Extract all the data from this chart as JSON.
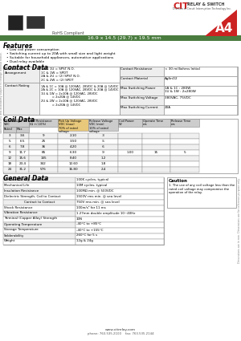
{
  "title": "A4",
  "subtitle": "16.9 x 14.5 (29.7) x 19.5 mm",
  "company": "CIT RELAY & SWITCH",
  "rohs": "RoHS Compliant",
  "features_title": "Features",
  "features": [
    "Low coil power consumption",
    "Switching current up to 20A with small size and light weight",
    "Suitable for household appliances, automotive applications",
    "Dual relay available"
  ],
  "contact_data_title": "Contact Data",
  "contact_right": [
    [
      "Contact Resistance",
      "< 30 milliohms Initial"
    ],
    [
      "Contact Material",
      "AgSnO2"
    ],
    [
      "Max Switching Power",
      "1A & 1C : 280W\n1U & 1W : 2x280W"
    ],
    [
      "Max Switching Voltage",
      "380VAC, 75VDC"
    ],
    [
      "Max Switching Current",
      "20A"
    ]
  ],
  "coil_data_title": "Coil Data",
  "general_data_title": "General Data",
  "general_data": [
    [
      "Electrical Life @ rated load",
      "100K cycles, typical"
    ],
    [
      "Mechanical Life",
      "10M cycles, typical"
    ],
    [
      "Insulation Resistance",
      "100MΩ min. @ 500VDC"
    ],
    [
      "Dielectric Strength, Coil to Contact",
      "1500V rms min. @ sea level"
    ],
    [
      "                    Contact to Contact",
      "750V rms min. @ sea level"
    ],
    [
      "Shock Resistance",
      "100m/s² for 11 ms"
    ],
    [
      "Vibration Resistance",
      "1.27mm double amplitude 10~40Hz"
    ],
    [
      "Terminal (Copper Alloy) Strength",
      "10N"
    ],
    [
      "Operating Temperature",
      "-40°C to +85°C"
    ],
    [
      "Storage Temperature",
      "-40°C to +155°C"
    ],
    [
      "Solderability",
      "260°C for 5 s"
    ],
    [
      "Weight",
      "12g & 24g"
    ]
  ],
  "caution_title": "Caution",
  "caution_text": "1. The use of any coil voltage less than the\nrated coil voltage may compromise the\noperation of the relay.",
  "header_color": "#4a7c3f",
  "bg_color": "#ffffff",
  "website": "www.citrelay.com",
  "phone": "phone: 763.535.2100    fax: 763.535.2144",
  "coil_rows": [
    [
      "3",
      "3.6",
      "9",
      "2.10",
      ".3",
      "",
      "",
      ""
    ],
    [
      "5",
      "6.5",
      "25",
      "3.50",
      ".5",
      "",
      "",
      ""
    ],
    [
      "6",
      "7.8",
      "36",
      "4.20",
      ".6",
      "",
      "",
      ""
    ],
    [
      "9",
      "11.7",
      "85",
      "6.30",
      ".9",
      "1.00",
      "15",
      "5"
    ],
    [
      "12",
      "15.6",
      "145",
      "8.40",
      "1.2",
      "",
      "",
      ""
    ],
    [
      "18",
      "23.4",
      "342",
      "12.60",
      "1.8",
      "",
      "",
      ""
    ],
    [
      "24",
      "31.2",
      "576",
      "16.80",
      "2.4",
      "",
      "",
      ""
    ]
  ]
}
